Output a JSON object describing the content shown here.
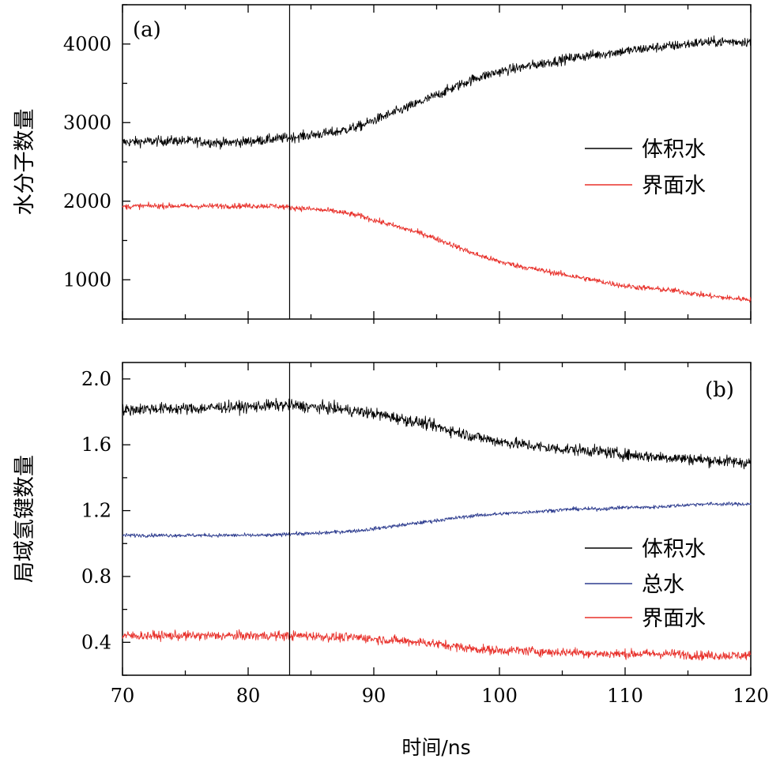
{
  "chart_data": [
    {
      "type": "line",
      "panel_label": "(a)",
      "ylabel": "水分子数量",
      "xlabel": "",
      "xlim": [
        70,
        120
      ],
      "ylim": [
        500,
        4500
      ],
      "x_ticks": [
        70,
        80,
        90,
        100,
        110,
        120
      ],
      "y_ticks": [
        1000,
        2000,
        3000,
        4000
      ],
      "y_tick_labels": [
        "1000",
        "2000",
        "3000",
        "4000"
      ],
      "vertical_marker_x": 83.3,
      "legend_position": "right",
      "series": [
        {
          "name": "体积水",
          "color": "#000000",
          "noise": 45,
          "x": [
            70,
            72,
            74,
            76,
            78,
            80,
            82,
            83.3,
            85,
            87,
            89,
            90,
            92,
            94,
            96,
            98,
            100,
            102,
            104,
            106,
            108,
            110,
            112,
            114,
            116,
            118,
            120
          ],
          "values": [
            2750,
            2760,
            2770,
            2760,
            2740,
            2760,
            2790,
            2810,
            2840,
            2880,
            2960,
            3030,
            3150,
            3280,
            3420,
            3560,
            3650,
            3710,
            3770,
            3830,
            3870,
            3910,
            3950,
            3980,
            4020,
            4030,
            4030
          ]
        },
        {
          "name": "界面水",
          "color": "#e8302a",
          "noise": 25,
          "x": [
            70,
            72,
            74,
            76,
            78,
            80,
            82,
            83.3,
            85,
            87,
            89,
            90,
            92,
            94,
            96,
            98,
            100,
            102,
            104,
            106,
            108,
            110,
            112,
            114,
            116,
            118,
            120
          ],
          "values": [
            1930,
            1940,
            1940,
            1935,
            1940,
            1940,
            1940,
            1920,
            1900,
            1870,
            1810,
            1760,
            1670,
            1580,
            1460,
            1330,
            1230,
            1160,
            1100,
            1040,
            980,
            920,
            890,
            860,
            810,
            770,
            750
          ]
        }
      ]
    },
    {
      "type": "line",
      "panel_label": "(b)",
      "ylabel": "局域氢键数量",
      "xlabel": "时间/ns",
      "xlim": [
        70,
        120
      ],
      "ylim": [
        0.2,
        2.1
      ],
      "x_ticks": [
        70,
        80,
        90,
        100,
        110,
        120
      ],
      "x_tick_labels": [
        "70",
        "80",
        "90",
        "100",
        "110",
        "120"
      ],
      "y_ticks": [
        0.4,
        0.8,
        1.2,
        1.6,
        2.0
      ],
      "y_tick_labels": [
        "0.4",
        "0.8",
        "1.2",
        "1.6",
        "2.0"
      ],
      "vertical_marker_x": 83.3,
      "legend_position": "bottom-right",
      "series": [
        {
          "name": "体积水",
          "color": "#000000",
          "noise": 0.025,
          "x": [
            70,
            72,
            74,
            76,
            78,
            80,
            82,
            83.3,
            85,
            87,
            89,
            90,
            92,
            94,
            96,
            98,
            100,
            102,
            104,
            106,
            108,
            110,
            112,
            114,
            116,
            118,
            120
          ],
          "values": [
            1.81,
            1.82,
            1.82,
            1.82,
            1.83,
            1.83,
            1.84,
            1.84,
            1.83,
            1.82,
            1.8,
            1.79,
            1.76,
            1.73,
            1.69,
            1.65,
            1.62,
            1.6,
            1.58,
            1.57,
            1.56,
            1.54,
            1.53,
            1.52,
            1.51,
            1.5,
            1.49
          ]
        },
        {
          "name": "总水",
          "color": "#2e3d8f",
          "noise": 0.008,
          "x": [
            70,
            72,
            74,
            76,
            78,
            80,
            82,
            83.3,
            85,
            87,
            89,
            90,
            92,
            94,
            96,
            98,
            100,
            102,
            104,
            106,
            108,
            110,
            112,
            114,
            116,
            118,
            120
          ],
          "values": [
            1.05,
            1.05,
            1.05,
            1.05,
            1.05,
            1.05,
            1.05,
            1.06,
            1.06,
            1.07,
            1.08,
            1.09,
            1.11,
            1.13,
            1.15,
            1.17,
            1.18,
            1.19,
            1.2,
            1.21,
            1.21,
            1.22,
            1.22,
            1.23,
            1.24,
            1.24,
            1.24
          ]
        },
        {
          "name": "界面水",
          "color": "#e8302a",
          "noise": 0.02,
          "x": [
            70,
            72,
            74,
            76,
            78,
            80,
            82,
            83.3,
            85,
            87,
            89,
            90,
            92,
            94,
            96,
            98,
            100,
            102,
            104,
            106,
            108,
            110,
            112,
            114,
            116,
            118,
            120
          ],
          "values": [
            0.44,
            0.44,
            0.44,
            0.44,
            0.44,
            0.44,
            0.44,
            0.44,
            0.44,
            0.43,
            0.43,
            0.42,
            0.41,
            0.4,
            0.38,
            0.36,
            0.35,
            0.35,
            0.34,
            0.34,
            0.33,
            0.33,
            0.33,
            0.33,
            0.32,
            0.32,
            0.32
          ]
        }
      ]
    }
  ]
}
